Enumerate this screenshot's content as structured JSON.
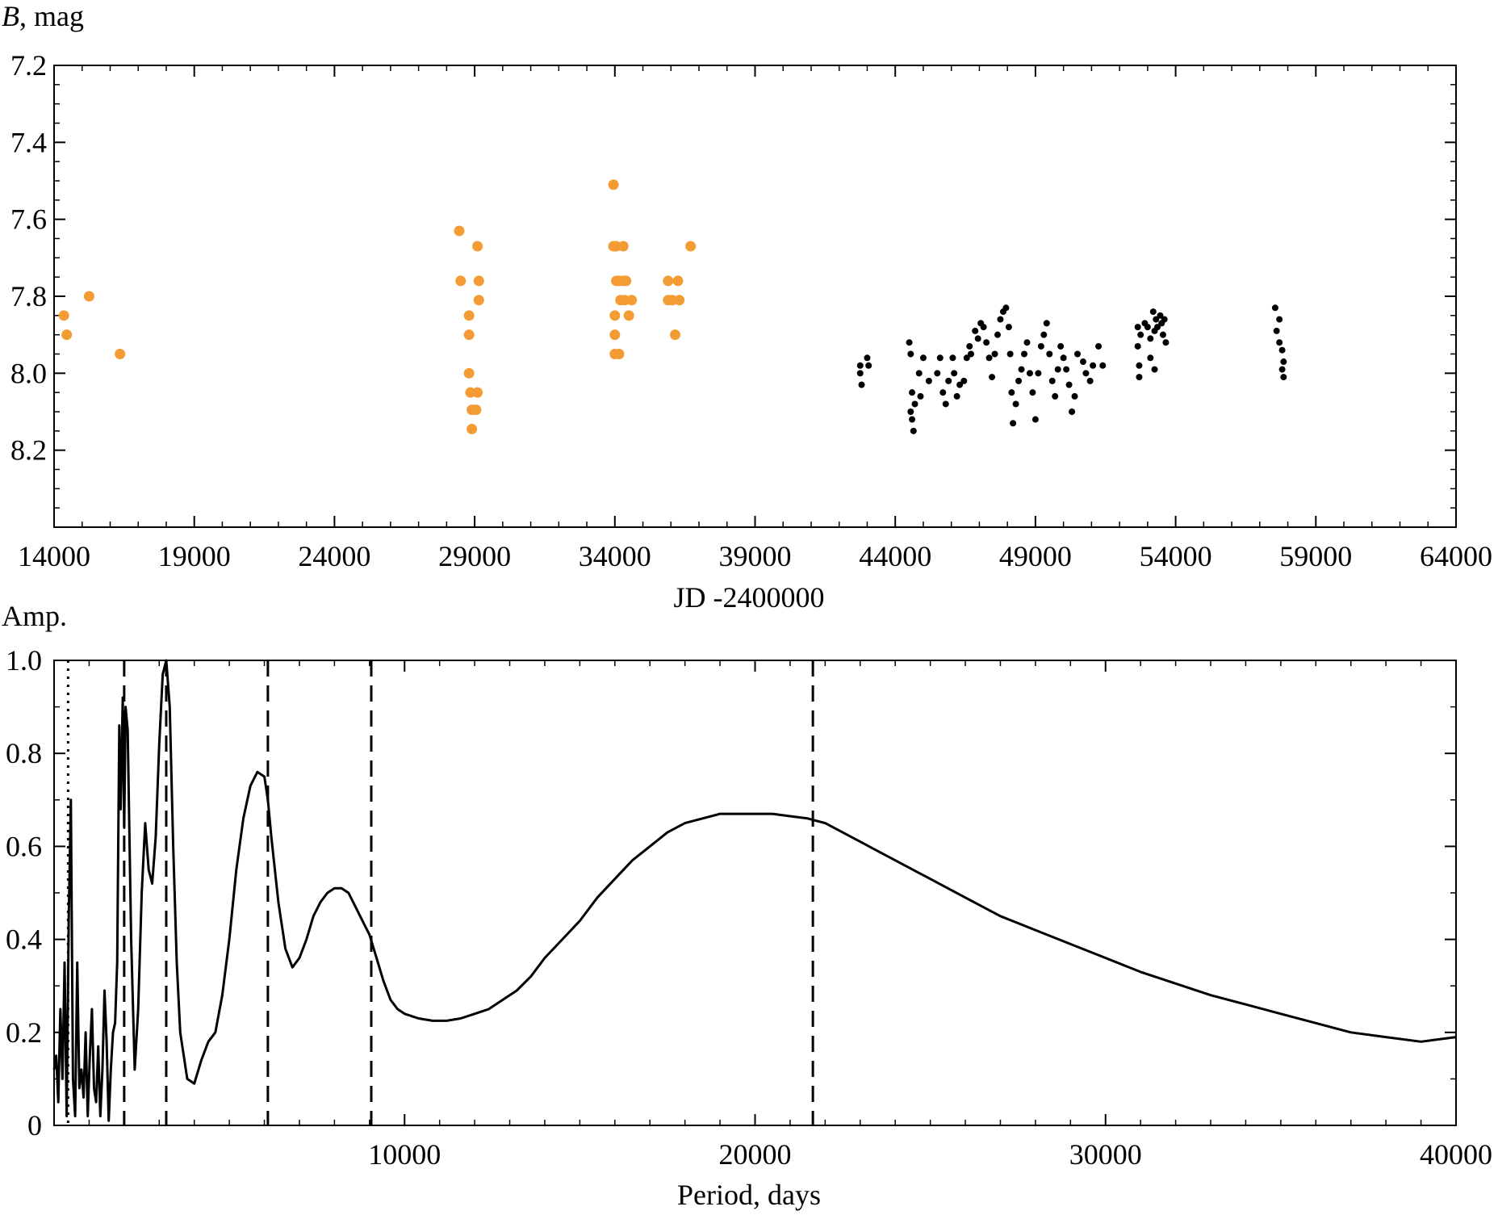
{
  "chart_data": [
    {
      "type": "scatter",
      "title": "",
      "ylabel_italic": "B",
      "ylabel_rest": ", mag",
      "xlabel": "JD -2400000",
      "xlim": [
        14000,
        64000
      ],
      "ylim": [
        7.2,
        8.4
      ],
      "y_inverted": true,
      "grid": false,
      "xticks": [
        14000,
        19000,
        24000,
        29000,
        34000,
        39000,
        44000,
        49000,
        54000,
        59000,
        64000
      ],
      "xtick_labels": [
        "14000",
        "19000",
        "24000",
        "29000",
        "34000",
        "39000",
        "44000",
        "49000",
        "54000",
        "59000",
        "64000"
      ],
      "yticks": [
        7.2,
        7.4,
        7.6,
        7.8,
        8.0,
        8.2
      ],
      "ytick_labels": [
        "7.2",
        "7.4",
        "7.6",
        "7.8",
        "8.0",
        "8.2"
      ],
      "series": [
        {
          "color": "#f39c34",
          "marker": "large-circle",
          "points": [
            [
              14350,
              7.85
            ],
            [
              14450,
              7.9
            ],
            [
              15250,
              7.8
            ],
            [
              16350,
              7.95
            ],
            [
              28450,
              7.63
            ],
            [
              28500,
              7.76
            ],
            [
              28800,
              7.85
            ],
            [
              28800,
              7.9
            ],
            [
              28800,
              8.0
            ],
            [
              28850,
              8.05
            ],
            [
              28900,
              8.095
            ],
            [
              28900,
              8.145
            ],
            [
              29050,
              8.095
            ],
            [
              29100,
              8.05
            ],
            [
              29100,
              7.67
            ],
            [
              29150,
              7.76
            ],
            [
              29150,
              7.81
            ],
            [
              33950,
              7.51
            ],
            [
              33950,
              7.67
            ],
            [
              34050,
              7.67
            ],
            [
              34050,
              7.76
            ],
            [
              34000,
              7.85
            ],
            [
              34000,
              7.9
            ],
            [
              34000,
              7.95
            ],
            [
              34150,
              7.95
            ],
            [
              34150,
              7.76
            ],
            [
              34200,
              7.81
            ],
            [
              34300,
              7.67
            ],
            [
              34300,
              7.76
            ],
            [
              34350,
              7.81
            ],
            [
              34400,
              7.76
            ],
            [
              34500,
              7.85
            ],
            [
              34600,
              7.81
            ],
            [
              35900,
              7.76
            ],
            [
              35900,
              7.81
            ],
            [
              36050,
              7.81
            ],
            [
              36150,
              7.9
            ],
            [
              36250,
              7.76
            ],
            [
              36300,
              7.81
            ],
            [
              36700,
              7.67
            ]
          ]
        },
        {
          "color": "#000000",
          "marker": "small-dot",
          "points": [
            [
              42750,
              7.98
            ],
            [
              42800,
              8.03
            ],
            [
              42750,
              8.0
            ],
            [
              43000,
              7.96
            ],
            [
              43050,
              7.98
            ],
            [
              44500,
              7.92
            ],
            [
              44550,
              7.95
            ],
            [
              44600,
              8.05
            ],
            [
              44550,
              8.1
            ],
            [
              44650,
              8.15
            ],
            [
              44600,
              8.12
            ],
            [
              44700,
              8.08
            ],
            [
              44850,
              8.0
            ],
            [
              44900,
              8.06
            ],
            [
              45000,
              7.96
            ],
            [
              45200,
              8.02
            ],
            [
              45500,
              8.0
            ],
            [
              45600,
              7.96
            ],
            [
              45700,
              8.05
            ],
            [
              45800,
              8.08
            ],
            [
              45900,
              8.02
            ],
            [
              46050,
              7.96
            ],
            [
              46100,
              8.0
            ],
            [
              46200,
              8.06
            ],
            [
              46300,
              8.03
            ],
            [
              46450,
              8.02
            ],
            [
              46550,
              7.96
            ],
            [
              46650,
              7.93
            ],
            [
              46700,
              7.95
            ],
            [
              46850,
              7.89
            ],
            [
              46950,
              7.91
            ],
            [
              47050,
              7.87
            ],
            [
              47150,
              7.88
            ],
            [
              47250,
              7.92
            ],
            [
              47350,
              7.96
            ],
            [
              47450,
              8.01
            ],
            [
              47550,
              7.95
            ],
            [
              47650,
              7.9
            ],
            [
              47750,
              7.86
            ],
            [
              47850,
              7.84
            ],
            [
              47950,
              7.83
            ],
            [
              48050,
              7.88
            ],
            [
              48100,
              7.95
            ],
            [
              48150,
              8.05
            ],
            [
              48200,
              8.13
            ],
            [
              48300,
              8.08
            ],
            [
              48400,
              8.02
            ],
            [
              48500,
              7.99
            ],
            [
              48600,
              7.95
            ],
            [
              48700,
              7.92
            ],
            [
              48800,
              8.0
            ],
            [
              48900,
              8.05
            ],
            [
              49000,
              8.12
            ],
            [
              49100,
              8.0
            ],
            [
              49200,
              7.93
            ],
            [
              49300,
              7.9
            ],
            [
              49400,
              7.87
            ],
            [
              49500,
              7.95
            ],
            [
              49600,
              8.02
            ],
            [
              49700,
              8.06
            ],
            [
              49800,
              7.99
            ],
            [
              49900,
              7.93
            ],
            [
              50000,
              7.96
            ],
            [
              50100,
              7.99
            ],
            [
              50200,
              8.03
            ],
            [
              50300,
              8.1
            ],
            [
              50400,
              8.06
            ],
            [
              50500,
              7.95
            ],
            [
              50700,
              7.97
            ],
            [
              50800,
              8.0
            ],
            [
              50950,
              8.02
            ],
            [
              51050,
              7.98
            ],
            [
              51250,
              7.93
            ],
            [
              51400,
              7.98
            ],
            [
              52650,
              7.88
            ],
            [
              52650,
              7.93
            ],
            [
              52700,
              7.98
            ],
            [
              52700,
              8.01
            ],
            [
              52750,
              7.9
            ],
            [
              52900,
              7.87
            ],
            [
              53000,
              7.88
            ],
            [
              53100,
              7.91
            ],
            [
              53100,
              7.96
            ],
            [
              53200,
              7.84
            ],
            [
              53250,
              7.89
            ],
            [
              53250,
              7.99
            ],
            [
              53300,
              7.86
            ],
            [
              53350,
              7.88
            ],
            [
              53450,
              7.85
            ],
            [
              53500,
              7.87
            ],
            [
              53550,
              7.9
            ],
            [
              53600,
              7.86
            ],
            [
              53650,
              7.92
            ],
            [
              57550,
              7.83
            ],
            [
              57600,
              7.89
            ],
            [
              57700,
              7.86
            ],
            [
              57700,
              7.92
            ],
            [
              57800,
              7.94
            ],
            [
              57850,
              7.97
            ],
            [
              57850,
              8.01
            ],
            [
              57800,
              7.99
            ]
          ]
        }
      ]
    },
    {
      "type": "line",
      "title": "",
      "ylabel": "Amp.",
      "xlabel": "Period, days",
      "xlim": [
        0,
        40000
      ],
      "ylim": [
        0,
        1.0
      ],
      "grid": false,
      "xticks": [
        10000,
        20000,
        30000,
        40000
      ],
      "xtick_labels": [
        "10000",
        "20000",
        "30000",
        "40000"
      ],
      "yticks": [
        0,
        0.2,
        0.4,
        0.6,
        0.8,
        1.0
      ],
      "ytick_labels": [
        "0",
        "0.2",
        "0.4",
        "0.6",
        "0.8",
        "1.0"
      ],
      "dashed_lines_x": [
        2000,
        3200,
        6100,
        9050,
        21650
      ],
      "dotted_lines_x": [
        400
      ],
      "series": [
        {
          "color": "#000000",
          "x": [
            0,
            60,
            120,
            180,
            240,
            300,
            360,
            420,
            480,
            540,
            600,
            660,
            720,
            780,
            840,
            900,
            960,
            1020,
            1080,
            1140,
            1200,
            1260,
            1320,
            1380,
            1440,
            1500,
            1560,
            1620,
            1680,
            1740,
            1800,
            1860,
            1900,
            1960,
            2000,
            2040,
            2100,
            2200,
            2300,
            2400,
            2500,
            2600,
            2700,
            2800,
            2900,
            3000,
            3100,
            3200,
            3300,
            3400,
            3500,
            3600,
            3800,
            4000,
            4200,
            4400,
            4600,
            4800,
            5000,
            5200,
            5400,
            5600,
            5800,
            6000,
            6100,
            6200,
            6400,
            6600,
            6800,
            7000,
            7200,
            7400,
            7600,
            7800,
            8000,
            8200,
            8400,
            8600,
            8800,
            9000,
            9200,
            9400,
            9600,
            9800,
            10000,
            10400,
            10800,
            11200,
            11600,
            12000,
            12400,
            12800,
            13200,
            13600,
            14000,
            14500,
            15000,
            15500,
            16000,
            16500,
            17000,
            17500,
            18000,
            18500,
            19000,
            19500,
            20000,
            20500,
            21000,
            21500,
            22000,
            22500,
            23000,
            23500,
            24000,
            25000,
            26000,
            27000,
            28000,
            29000,
            30000,
            31000,
            32000,
            33000,
            34000,
            35000,
            36000,
            37000,
            38000,
            39000,
            40000
          ],
          "y": [
            0.12,
            0.15,
            0.05,
            0.25,
            0.1,
            0.35,
            0.02,
            0.45,
            0.7,
            0.1,
            0.02,
            0.35,
            0.08,
            0.12,
            0.06,
            0.2,
            0.02,
            0.15,
            0.25,
            0.08,
            0.05,
            0.17,
            0.02,
            0.12,
            0.29,
            0.18,
            0.01,
            0.12,
            0.2,
            0.22,
            0.35,
            0.86,
            0.68,
            0.92,
            0.64,
            0.9,
            0.85,
            0.4,
            0.12,
            0.25,
            0.5,
            0.65,
            0.55,
            0.52,
            0.62,
            0.82,
            0.97,
            1.0,
            0.9,
            0.6,
            0.35,
            0.2,
            0.1,
            0.09,
            0.14,
            0.18,
            0.2,
            0.28,
            0.4,
            0.55,
            0.66,
            0.73,
            0.76,
            0.75,
            0.7,
            0.62,
            0.48,
            0.38,
            0.34,
            0.36,
            0.4,
            0.45,
            0.48,
            0.5,
            0.51,
            0.51,
            0.5,
            0.47,
            0.44,
            0.41,
            0.36,
            0.31,
            0.27,
            0.25,
            0.24,
            0.23,
            0.225,
            0.225,
            0.23,
            0.24,
            0.25,
            0.27,
            0.29,
            0.32,
            0.36,
            0.4,
            0.44,
            0.49,
            0.53,
            0.57,
            0.6,
            0.63,
            0.65,
            0.66,
            0.67,
            0.67,
            0.67,
            0.67,
            0.665,
            0.66,
            0.65,
            0.63,
            0.61,
            0.59,
            0.57,
            0.53,
            0.49,
            0.45,
            0.42,
            0.39,
            0.36,
            0.33,
            0.305,
            0.28,
            0.26,
            0.24,
            0.22,
            0.2,
            0.19,
            0.18,
            0.19
          ]
        }
      ]
    }
  ]
}
